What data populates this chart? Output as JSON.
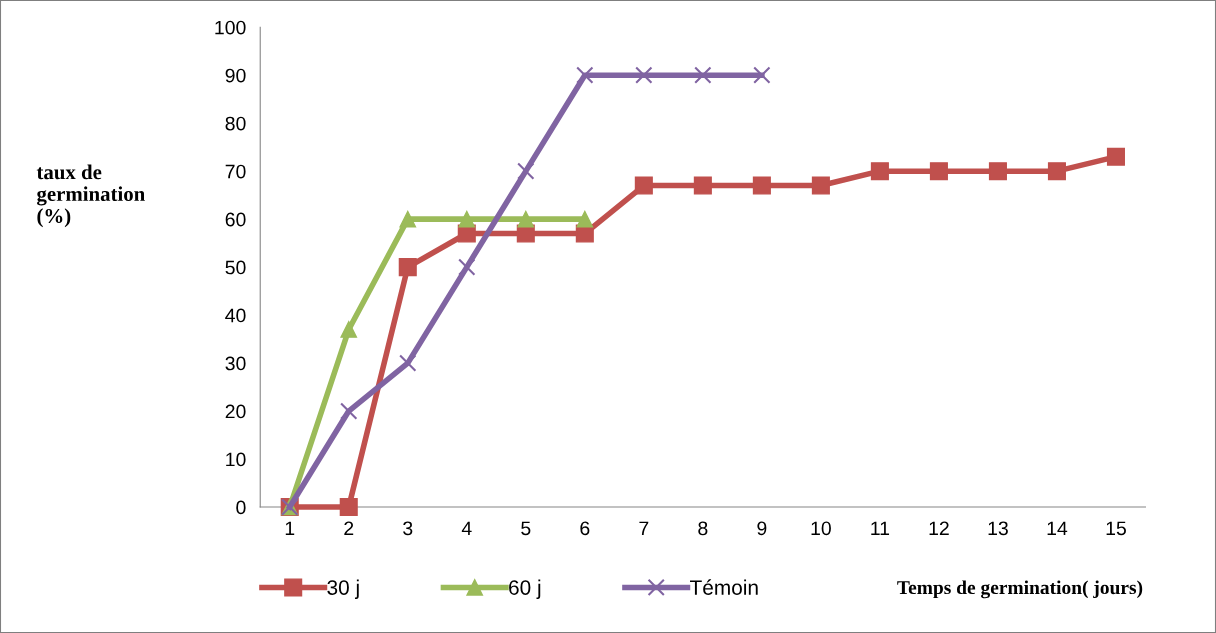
{
  "chart_data": {
    "type": "line",
    "xlabel": "Temps de germination( jours)",
    "ylabel": "taux de\ngermination\n(%)",
    "categories": [
      "1",
      "2",
      "3",
      "4",
      "5",
      "6",
      "7",
      "8",
      "9",
      "10",
      "11",
      "12",
      "13",
      "14",
      "15"
    ],
    "series": [
      {
        "name": "30 j",
        "color": "#c0504d",
        "marker": "square",
        "values": [
          0,
          0,
          50,
          57,
          57,
          57,
          67,
          67,
          67,
          67,
          70,
          70,
          70,
          70,
          73
        ]
      },
      {
        "name": "60 j",
        "color": "#9bbb59",
        "marker": "triangle",
        "values": [
          0,
          37,
          60,
          60,
          60,
          60,
          null,
          null,
          null,
          null,
          null,
          null,
          null,
          null,
          null
        ]
      },
      {
        "name": "Témoin",
        "color": "#8064a2",
        "marker": "cross",
        "values": [
          0,
          20,
          30,
          50,
          70,
          90,
          90,
          90,
          90,
          null,
          null,
          null,
          null,
          null,
          null
        ]
      }
    ],
    "ylim": [
      0,
      100
    ],
    "yticks": [
      0,
      10,
      20,
      30,
      40,
      50,
      60,
      70,
      80,
      90,
      100
    ],
    "grid": false,
    "legend": "bottom",
    "line_style": "solid"
  }
}
